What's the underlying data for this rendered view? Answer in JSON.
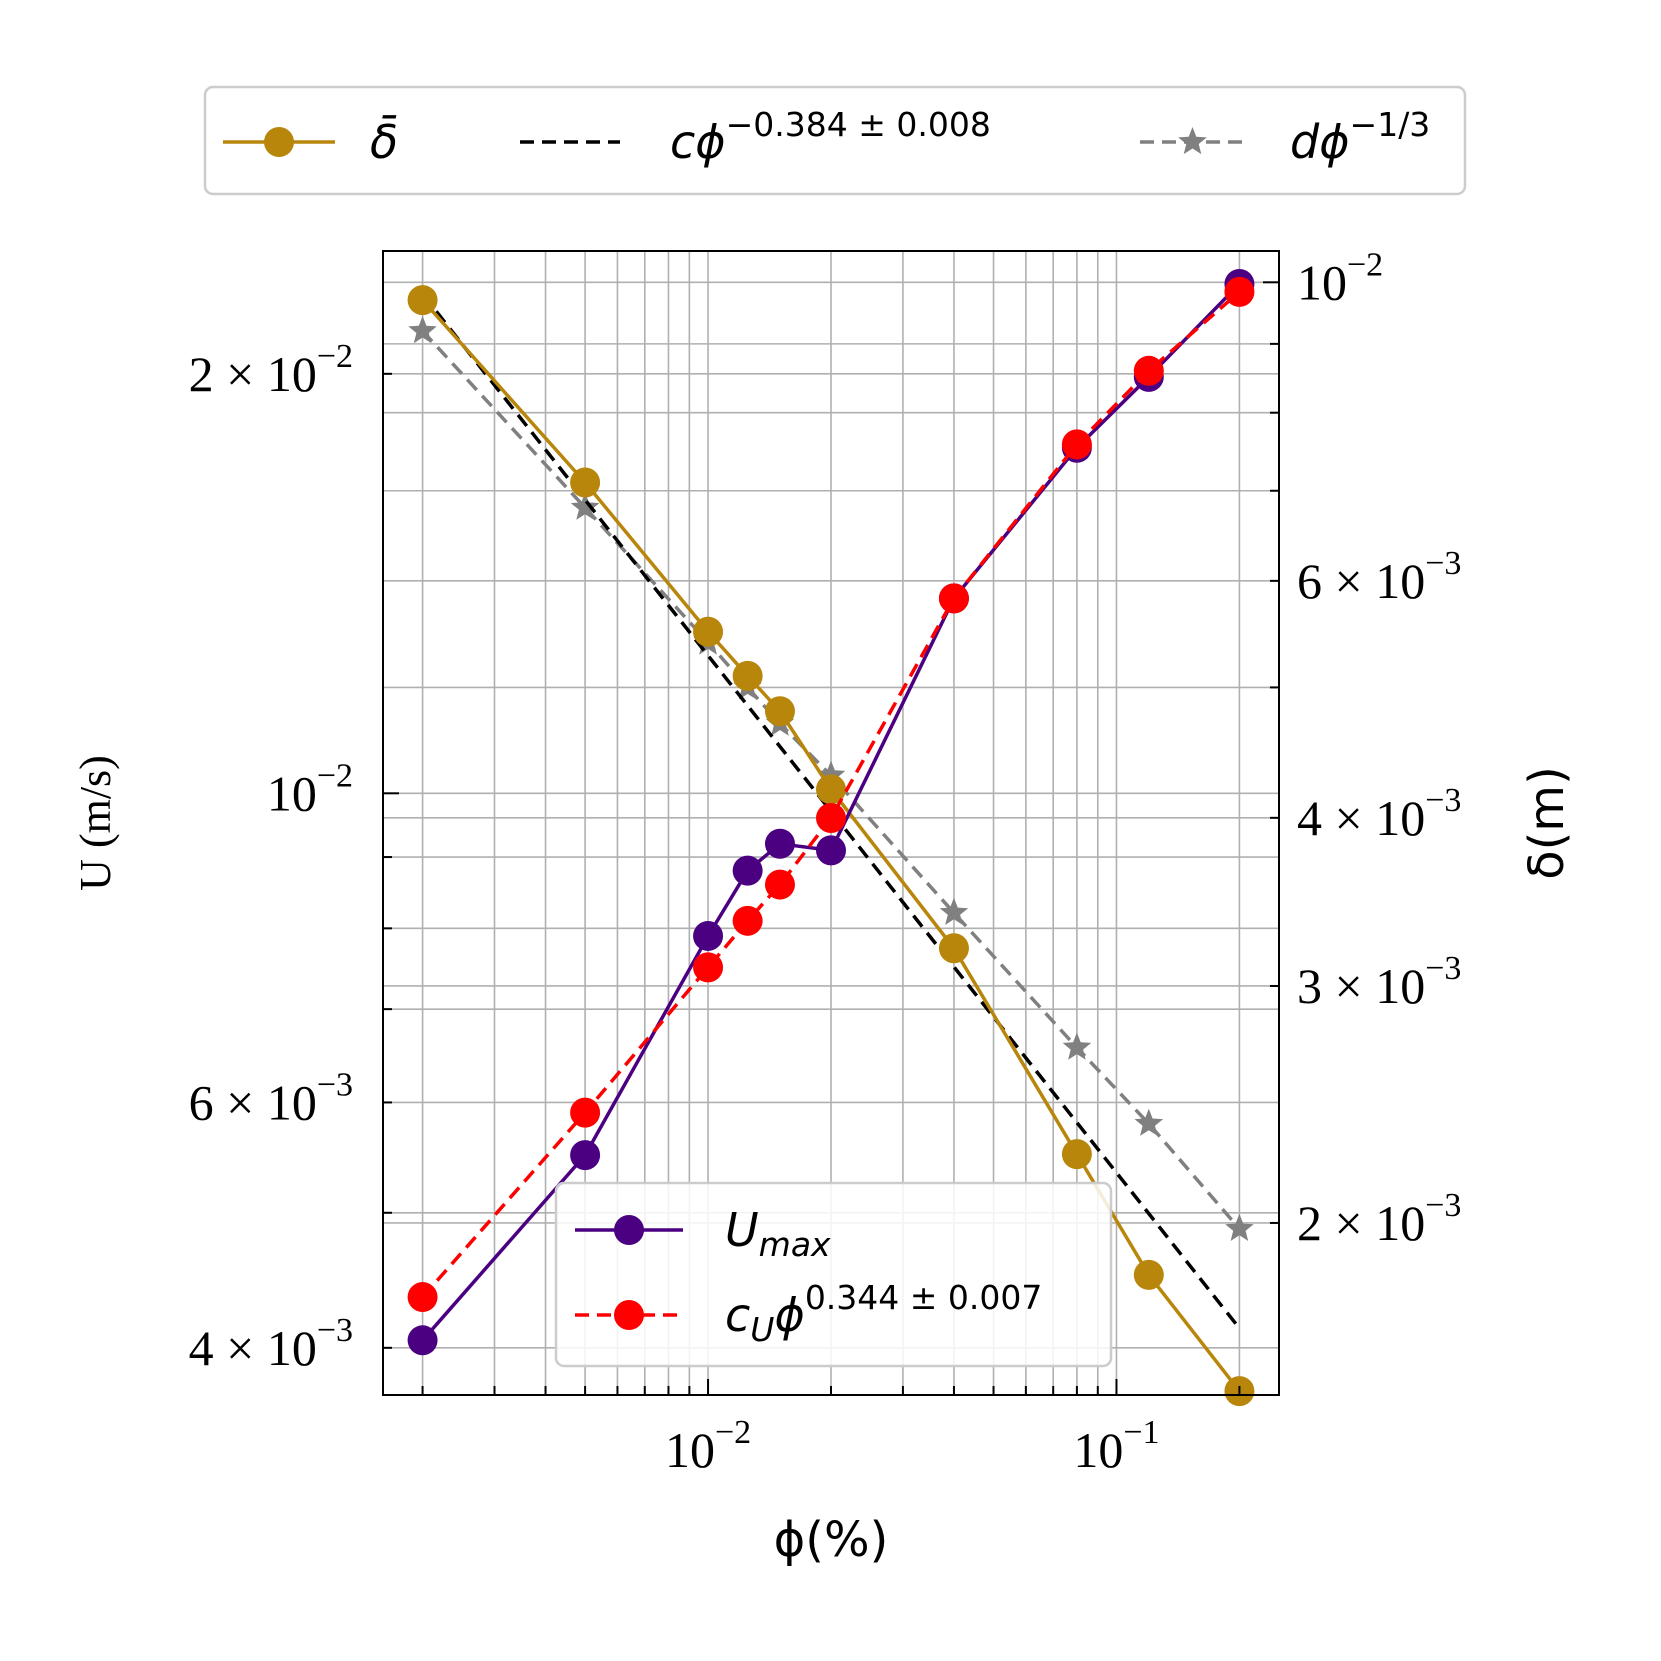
{
  "chart_data": {
    "type": "line",
    "x_scale": "log",
    "y_scale": "log",
    "y2_scale": "log",
    "grid": true,
    "xlabel": "ϕ(%)",
    "ylabel": "U (m/s)",
    "y2label": "δ(m)",
    "xlim": [
      0.0016,
      0.25
    ],
    "ylim": [
      0.0037,
      0.0245
    ],
    "y2lim": [
      0.00149,
      0.01055
    ],
    "x_ticks": [
      {
        "value": 0.01,
        "base": "10",
        "exp": "−2"
      },
      {
        "value": 0.1,
        "base": "10",
        "exp": "−1"
      }
    ],
    "y_ticks": [
      {
        "value": 0.004,
        "mant": "4 × ",
        "base": "10",
        "exp": "−3"
      },
      {
        "value": 0.006,
        "mant": "6 × ",
        "base": "10",
        "exp": "−3"
      },
      {
        "value": 0.01,
        "mant": "",
        "base": "10",
        "exp": "−2"
      },
      {
        "value": 0.02,
        "mant": "2 × ",
        "base": "10",
        "exp": "−2"
      }
    ],
    "y2_ticks": [
      {
        "value": 0.002,
        "mant": "2 × ",
        "base": "10",
        "exp": "−3"
      },
      {
        "value": 0.003,
        "mant": "3 × ",
        "base": "10",
        "exp": "−3"
      },
      {
        "value": 0.004,
        "mant": "4 × ",
        "base": "10",
        "exp": "−3"
      },
      {
        "value": 0.006,
        "mant": "6 × ",
        "base": "10",
        "exp": "−3"
      },
      {
        "value": 0.01,
        "mant": "",
        "base": "10",
        "exp": "−2"
      }
    ],
    "colors": {
      "U_max": "#4b0082",
      "c_U_fit": "#ff0000",
      "delta_bar": "#b8860b",
      "c_fit": "#000000",
      "d_fit": "#808080"
    },
    "series": [
      {
        "key": "U_max",
        "name": "U_max",
        "axis": "left",
        "style": "solid",
        "marker": "circle",
        "x": [
          0.002,
          0.005,
          0.01,
          0.0125,
          0.015,
          0.02,
          0.04,
          0.08,
          0.12,
          0.2
        ],
        "y": [
          0.00405,
          0.0055,
          0.0079,
          0.0088,
          0.0092,
          0.0091,
          0.0138,
          0.0177,
          0.0199,
          0.0232
        ]
      },
      {
        "key": "c_U_fit",
        "name": "c_U ϕ^(0.344 ± 0.007)",
        "axis": "left",
        "style": "dashed",
        "marker": "circle",
        "x": [
          0.002,
          0.005,
          0.01,
          0.0125,
          0.015,
          0.02,
          0.04,
          0.08,
          0.12,
          0.2
        ],
        "y": [
          0.00435,
          0.0059,
          0.0075,
          0.0081,
          0.0086,
          0.0096,
          0.0138,
          0.0178,
          0.0201,
          0.0229
        ]
      },
      {
        "key": "delta_bar",
        "name": "δ̄",
        "axis": "right",
        "style": "solid",
        "marker": "circle",
        "x": [
          0.002,
          0.005,
          0.01,
          0.0125,
          0.015,
          0.02,
          0.04,
          0.08,
          0.12,
          0.2
        ],
        "y": [
          0.0097,
          0.0071,
          0.0055,
          0.0051,
          0.0048,
          0.0042,
          0.0032,
          0.00225,
          0.00183,
          0.0015
        ]
      },
      {
        "key": "c_fit",
        "name": "cϕ^(−0.384 ± 0.008)",
        "axis": "right",
        "style": "dashed",
        "marker": "none",
        "x": [
          0.002,
          0.2
        ],
        "y": [
          0.0098,
          0.00167
        ]
      },
      {
        "key": "d_fit",
        "name": "dϕ^(−1/3)",
        "axis": "right",
        "style": "dashed",
        "marker": "star",
        "x": [
          0.002,
          0.005,
          0.01,
          0.0125,
          0.015,
          0.02,
          0.04,
          0.08,
          0.12,
          0.2
        ],
        "y": [
          0.0092,
          0.0068,
          0.0054,
          0.005,
          0.0047,
          0.0043,
          0.0034,
          0.0027,
          0.00237,
          0.00198
        ]
      }
    ],
    "legend_top": {
      "placement": "above plot",
      "entries": [
        {
          "key": "delta_bar",
          "label": "δ̄"
        },
        {
          "key": "c_fit",
          "label": "cϕ",
          "sup": "−0.384 ± 0.008"
        },
        {
          "key": "d_fit",
          "label": "dϕ",
          "sup": "−1/3"
        }
      ]
    },
    "legend_inner": {
      "placement": "lower center",
      "entries": [
        {
          "key": "U_max",
          "label": "U",
          "sub": "max"
        },
        {
          "key": "c_U_fit",
          "label": "c",
          "sub": "U",
          "tail": "ϕ",
          "sup": "0.344 ± 0.007"
        }
      ]
    }
  }
}
